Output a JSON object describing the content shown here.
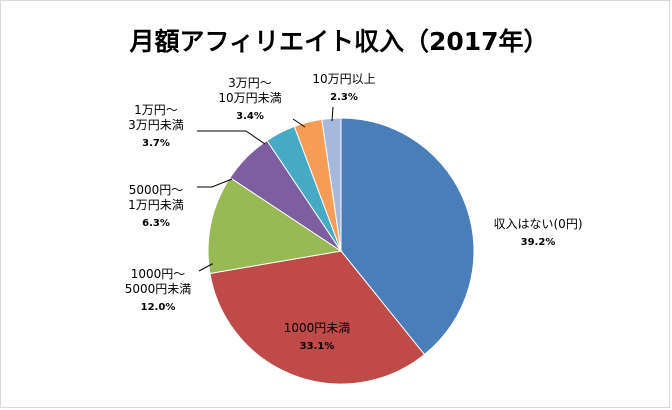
{
  "chart_data": {
    "type": "pie",
    "title": "月額アフィリエイト収入（2017年）",
    "slices": [
      {
        "label_lines": [
          "収入はない(0円)"
        ],
        "value": 39.2,
        "value_label": "39.2%",
        "color": "#4a7ebb"
      },
      {
        "label_lines": [
          "1000円未満"
        ],
        "value": 33.1,
        "value_label": "33.1%",
        "color": "#be4b48"
      },
      {
        "label_lines": [
          "1000円～",
          "5000円未満"
        ],
        "value": 12.0,
        "value_label": "12.0%",
        "color": "#98b954"
      },
      {
        "label_lines": [
          "5000円～",
          "1万円未満"
        ],
        "value": 6.3,
        "value_label": "6.3%",
        "color": "#7d5fa0"
      },
      {
        "label_lines": [
          "1万円～",
          "3万円未満"
        ],
        "value": 3.7,
        "value_label": "3.7%",
        "color": "#46aac5"
      },
      {
        "label_lines": [
          "3万円～",
          "10万円未満"
        ],
        "value": 3.4,
        "value_label": "3.4%",
        "color": "#f59d56"
      },
      {
        "label_lines": [
          "10万円以上"
        ],
        "value": 2.3,
        "value_label": "2.3%",
        "color": "#a5b9dc"
      }
    ]
  }
}
